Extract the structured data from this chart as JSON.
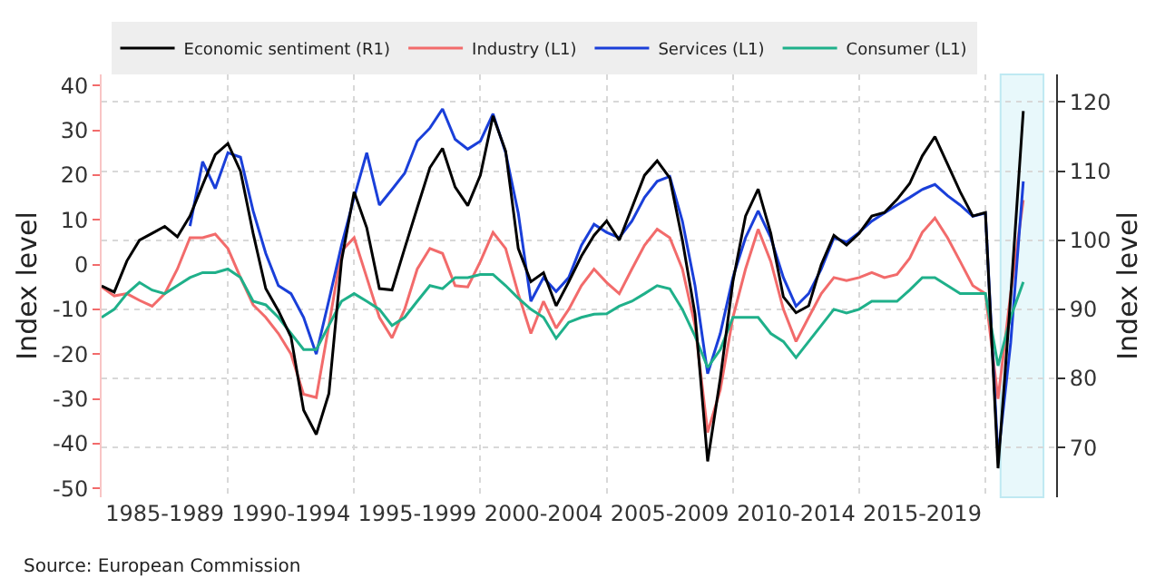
{
  "chart_data": {
    "type": "line",
    "ylabel": "Index level",
    "y2label": "Index level",
    "annotations": [
      "Source: European Commission"
    ],
    "categories": [
      null,
      null,
      null,
      null,
      null,
      "1985-1989",
      null,
      null,
      null,
      null,
      null,
      null,
      null,
      null,
      null,
      "1990-1994",
      null,
      null,
      null,
      null,
      null,
      null,
      null,
      null,
      null,
      "1995-1999",
      null,
      null,
      null,
      null,
      null,
      null,
      null,
      null,
      null,
      "2000-2004",
      null,
      null,
      null,
      null,
      null,
      null,
      null,
      null,
      null,
      "2005-2009",
      null,
      null,
      null,
      null,
      null,
      null,
      null,
      null,
      null,
      "2010-2014",
      null,
      null,
      null,
      null,
      null,
      null,
      null,
      null,
      null,
      "2015-2019",
      null,
      null,
      null,
      null,
      null,
      null,
      null,
      null
    ],
    "ylim": [
      -52,
      42.5
    ],
    "yticks": [
      -50,
      -40,
      -30,
      -20,
      -10,
      0,
      10,
      20,
      30,
      40
    ],
    "y2lim": [
      62.8,
      124
    ],
    "y2ticks": [
      70,
      80,
      90,
      100,
      110,
      120
    ],
    "grid": true,
    "legend": "top left",
    "series": [
      {
        "name": "Economic sentiment (R1)",
        "color": "#000000",
        "axis": "y2",
        "values": [
          93.4,
          92.5,
          97,
          100,
          101,
          102,
          100.5,
          103.5,
          108,
          112.4,
          114,
          110,
          101,
          93,
          89.8,
          86,
          75.4,
          71.9,
          77.8,
          97,
          107,
          101.8,
          93,
          92.8,
          98.8,
          104.7,
          110.5,
          113.3,
          107.7,
          105,
          109.4,
          118,
          112.9,
          98.8,
          94,
          95.3,
          90.5,
          94,
          97.7,
          100.7,
          102.8,
          100,
          104.7,
          109.4,
          111.5,
          109,
          100,
          89.3,
          68,
          80,
          94,
          103.5,
          107.4,
          101,
          91.8,
          89.5,
          90.5,
          96.5,
          100.7,
          99.3,
          101,
          103.5,
          104,
          105.9,
          108.2,
          112.2,
          115,
          111,
          107,
          103.5,
          104,
          67,
          91.8,
          118.7
        ]
      },
      {
        "name": "Industry (L1)",
        "color": "#f26b6b",
        "values": [
          -5,
          -7,
          -6.5,
          -8,
          -9.3,
          -6.5,
          -1,
          6,
          6,
          6.8,
          3.6,
          -2.9,
          -9,
          -11.8,
          -15.4,
          -20,
          -29,
          -29.7,
          -13.6,
          3,
          6,
          -2.9,
          -11.8,
          -16.4,
          -10,
          -1,
          3.6,
          2.5,
          -4.7,
          -5,
          0.7,
          7.2,
          3.6,
          -6.5,
          -15.4,
          -8.2,
          -14.2,
          -10,
          -4.7,
          -1,
          -4,
          -6.5,
          -1,
          4.3,
          7.9,
          6,
          -1,
          -13.6,
          -37.5,
          -28,
          -11.8,
          -1,
          7.9,
          0.7,
          -10,
          -17.2,
          -11.8,
          -6.5,
          -2.9,
          -3.6,
          -2.9,
          -1.8,
          -2.9,
          -2.2,
          1.4,
          7.2,
          10.4,
          6,
          0.7,
          -4.7,
          -6.5,
          -30,
          -6.5,
          14.4
        ]
      },
      {
        "name": "Services (L1)",
        "color": "#1a3fd9",
        "values": [
          null,
          null,
          null,
          null,
          null,
          null,
          null,
          8.6,
          23,
          17,
          25,
          24,
          12,
          2.5,
          -4.7,
          -6.5,
          -11.8,
          -20,
          -8,
          4.3,
          15,
          25,
          13.3,
          16.8,
          20.4,
          27.6,
          30.5,
          34.8,
          28,
          25.8,
          27.6,
          33.7,
          25,
          11.5,
          -8.2,
          -2.9,
          -6,
          -2.9,
          4.3,
          9,
          7.2,
          6,
          9.7,
          15,
          18.6,
          19.7,
          9.7,
          -4.7,
          -24.4,
          -15.4,
          -2.9,
          6,
          12,
          6,
          -2.9,
          -9.3,
          -6.5,
          -1,
          6,
          5,
          7.2,
          9.7,
          11.5,
          13.3,
          15,
          16.8,
          17.9,
          15.4,
          13.3,
          10.8,
          11.5,
          -43,
          -17.5,
          18.6
        ]
      },
      {
        "name": "Consumer (L1)",
        "color": "#1fb08a",
        "values": [
          -11.8,
          -10,
          -6.5,
          -4,
          -5.7,
          -6.5,
          -4.7,
          -2.9,
          -1.8,
          -1.8,
          -1,
          -2.9,
          -8.2,
          -9,
          -11.8,
          -15.4,
          -19,
          -19,
          -13.6,
          -8.2,
          -6.5,
          -8.2,
          -10,
          -13.6,
          -11.8,
          -8.2,
          -4.7,
          -5.4,
          -2.9,
          -2.9,
          -2.2,
          -2.2,
          -4.7,
          -7.5,
          -10,
          -11.8,
          -16.5,
          -12.9,
          -11.8,
          -11.1,
          -11,
          -9.3,
          -8.2,
          -6.5,
          -4.7,
          -5.4,
          -10,
          -16,
          -23,
          -19,
          -11.8,
          -11.8,
          -11.8,
          -15.4,
          -17.2,
          -20.8,
          -17.2,
          -13.6,
          -10,
          -10.8,
          -10,
          -8.2,
          -8.2,
          -8.2,
          -5.7,
          -2.9,
          -2.9,
          -4.7,
          -6.5,
          -6.5,
          -6.5,
          -22.6,
          -11.8,
          -3.9
        ]
      }
    ]
  }
}
